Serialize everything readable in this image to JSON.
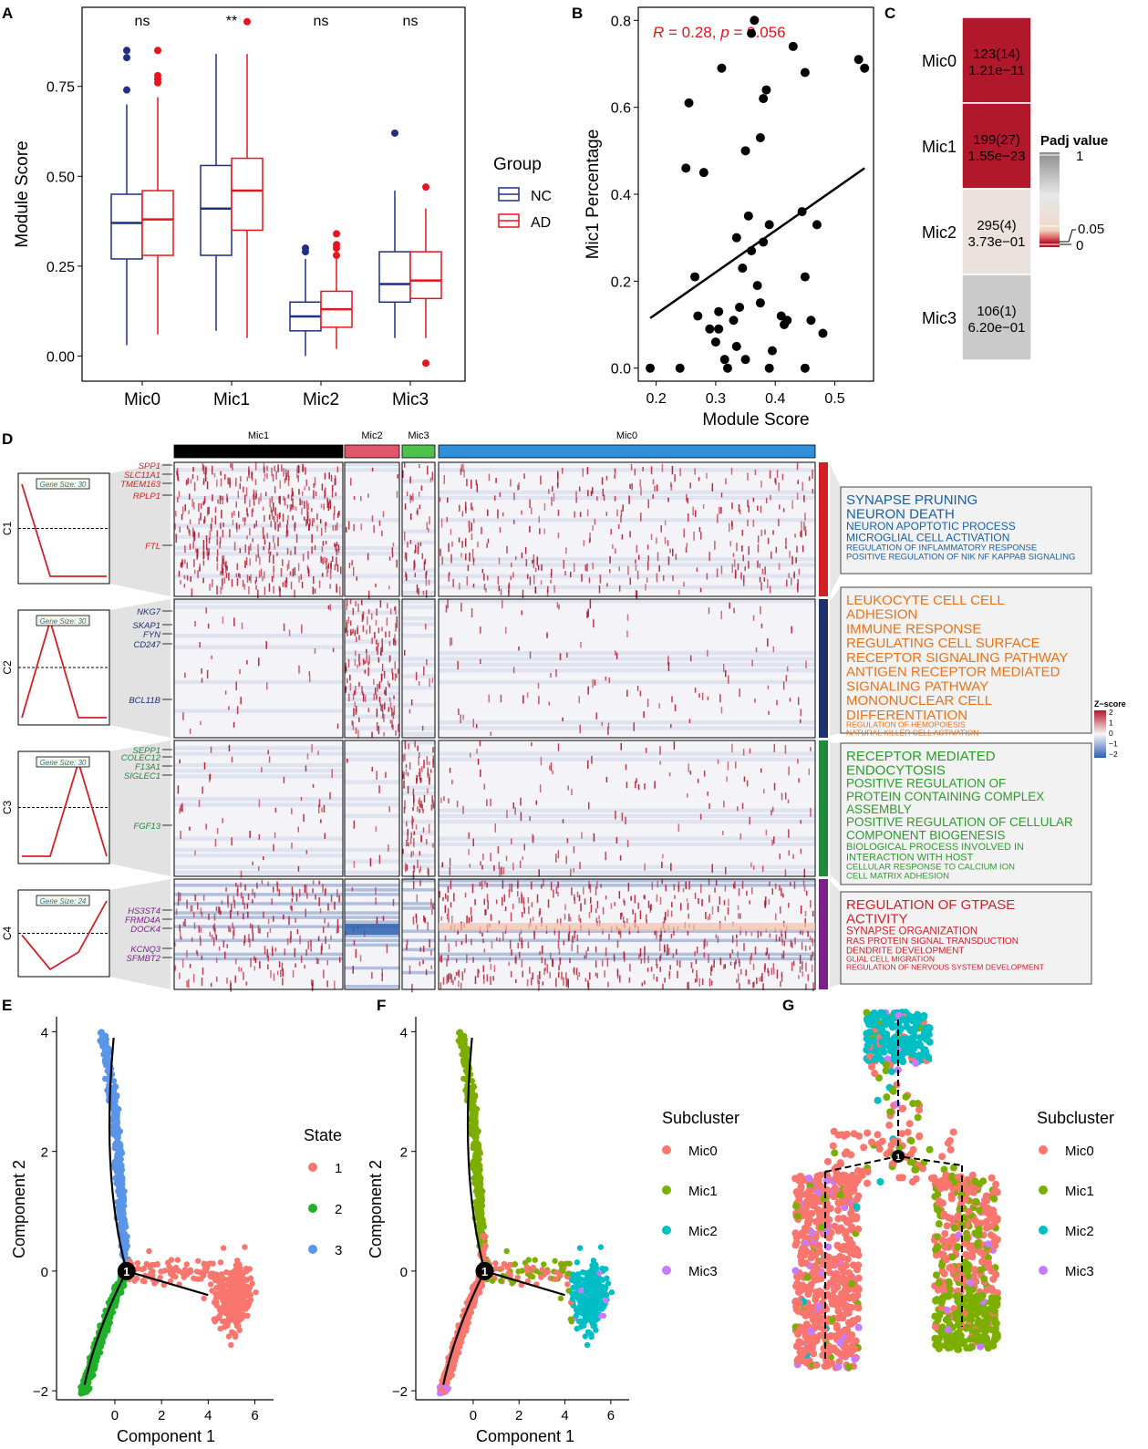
{
  "figure_title": "Microglia subcluster analysis",
  "colors": {
    "nc": "#1F2F86",
    "ad": "#E8141C",
    "mic0": "#F8766D",
    "mic1": "#7CAE00",
    "mic2": "#00BFC4",
    "mic3": "#C77CFF",
    "state1": "#F8766D",
    "state2": "#22B02C",
    "state3": "#5B95E8",
    "c1": "#D32027",
    "c2": "#20316D",
    "c3": "#1F8A3C",
    "c4": "#7A2286",
    "go_c1": "#1660A8",
    "go_c2": "#E8731A",
    "go_c3": "#2E9A2E",
    "go_c4": "#D0222A",
    "heat_high": "#B2182B",
    "heat_low": "#2C5FB0",
    "bar_mic1": "#000000",
    "bar_mic2": "#E0566B",
    "bar_mic3": "#4CC24C",
    "bar_mic0": "#2E8FDD"
  },
  "chart_data": [
    {
      "panel": "A",
      "type": "box",
      "ylabel": "Module Score",
      "ylim": [
        -0.07,
        0.97
      ],
      "yticks": [
        "0.00",
        "0.25",
        "0.50",
        "0.75"
      ],
      "ytick_values": [
        0,
        0.25,
        0.5,
        0.75
      ],
      "categories": [
        "Mic0",
        "Mic1",
        "Mic2",
        "Mic3"
      ],
      "significance": [
        "ns",
        "**",
        "ns",
        "ns"
      ],
      "legend": {
        "title": "Group",
        "items": [
          "NC",
          "AD"
        ]
      },
      "series": [
        {
          "name": "NC",
          "boxes": [
            {
              "min": 0.03,
              "q1": 0.27,
              "median": 0.37,
              "q3": 0.45,
              "max": 0.7,
              "outliers": [
                0.74,
                0.83,
                0.85
              ]
            },
            {
              "min": 0.07,
              "q1": 0.28,
              "median": 0.41,
              "q3": 0.53,
              "max": 0.84,
              "outliers": []
            },
            {
              "min": 0.0,
              "q1": 0.07,
              "median": 0.11,
              "q3": 0.15,
              "max": 0.27,
              "outliers": [
                0.29,
                0.3
              ]
            },
            {
              "min": 0.05,
              "q1": 0.15,
              "median": 0.2,
              "q3": 0.29,
              "max": 0.46,
              "outliers": [
                0.62
              ]
            }
          ]
        },
        {
          "name": "AD",
          "boxes": [
            {
              "min": 0.06,
              "q1": 0.28,
              "median": 0.38,
              "q3": 0.46,
              "max": 0.72,
              "outliers": [
                0.76,
                0.77,
                0.78,
                0.85
              ]
            },
            {
              "min": 0.05,
              "q1": 0.35,
              "median": 0.46,
              "q3": 0.55,
              "max": 0.84,
              "outliers": [
                0.93
              ]
            },
            {
              "min": 0.02,
              "q1": 0.08,
              "median": 0.13,
              "q3": 0.18,
              "max": 0.27,
              "outliers": [
                0.28,
                0.3,
                0.31,
                0.34
              ]
            },
            {
              "min": 0.05,
              "q1": 0.16,
              "median": 0.21,
              "q3": 0.29,
              "max": 0.41,
              "outliers": [
                0.47,
                -0.02
              ]
            }
          ]
        }
      ]
    },
    {
      "panel": "B",
      "type": "scatter",
      "xlabel": "Module Score",
      "ylabel": "Mic1 Percentage",
      "xlim": [
        0.17,
        0.565
      ],
      "ylim": [
        -0.03,
        0.83
      ],
      "xticks": [
        "0.2",
        "0.3",
        "0.4",
        "0.5"
      ],
      "xtick_values": [
        0.2,
        0.3,
        0.4,
        0.5
      ],
      "yticks": [
        "0.0",
        "0.2",
        "0.4",
        "0.6",
        "0.8"
      ],
      "ytick_values": [
        0,
        0.2,
        0.4,
        0.6,
        0.8
      ],
      "annotation": "R = 0.28, p = 0.056",
      "annotation_r": "R",
      "annotation_mid": " = 0.28, ",
      "annotation_p": "p",
      "annotation_end": " = 0.056",
      "regression": {
        "x0": 0.19,
        "y0": 0.115,
        "x1": 0.55,
        "y1": 0.46
      },
      "points": [
        [
          0.19,
          0.0
        ],
        [
          0.24,
          0.0
        ],
        [
          0.25,
          0.46
        ],
        [
          0.255,
          0.61
        ],
        [
          0.265,
          0.21
        ],
        [
          0.27,
          0.12
        ],
        [
          0.28,
          0.45
        ],
        [
          0.29,
          0.09
        ],
        [
          0.3,
          0.06
        ],
        [
          0.305,
          0.09
        ],
        [
          0.305,
          0.13
        ],
        [
          0.31,
          0.69
        ],
        [
          0.315,
          0.02
        ],
        [
          0.32,
          0.0
        ],
        [
          0.33,
          0.11
        ],
        [
          0.335,
          0.3
        ],
        [
          0.335,
          0.05
        ],
        [
          0.34,
          0.14
        ],
        [
          0.345,
          0.23
        ],
        [
          0.35,
          0.5
        ],
        [
          0.35,
          0.02
        ],
        [
          0.355,
          0.35
        ],
        [
          0.36,
          0.27
        ],
        [
          0.36,
          0.77
        ],
        [
          0.365,
          0.8
        ],
        [
          0.37,
          0.19
        ],
        [
          0.375,
          0.15
        ],
        [
          0.375,
          0.53
        ],
        [
          0.38,
          0.62
        ],
        [
          0.385,
          0.64
        ],
        [
          0.38,
          0.29
        ],
        [
          0.39,
          0.33
        ],
        [
          0.39,
          0.0
        ],
        [
          0.395,
          0.04
        ],
        [
          0.41,
          0.12
        ],
        [
          0.415,
          0.1
        ],
        [
          0.42,
          0.11
        ],
        [
          0.43,
          0.74
        ],
        [
          0.445,
          0.36
        ],
        [
          0.45,
          0.21
        ],
        [
          0.45,
          0.0
        ],
        [
          0.45,
          0.68
        ],
        [
          0.46,
          0.11
        ],
        [
          0.47,
          0.33
        ],
        [
          0.48,
          0.08
        ],
        [
          0.54,
          0.71
        ],
        [
          0.55,
          0.69
        ]
      ]
    },
    {
      "panel": "C",
      "type": "heatmap",
      "rows": [
        {
          "label": "Mic0",
          "count": "123(14)",
          "padj": "1.21e−11",
          "fill": "#B2182B"
        },
        {
          "label": "Mic1",
          "count": "199(27)",
          "padj": "1.55e−23",
          "fill": "#B2182B"
        },
        {
          "label": "Mic2",
          "count": "295(4)",
          "padj": "3.73e−01",
          "fill": "#EAE0DC"
        },
        {
          "label": "Mic3",
          "count": "106(1)",
          "padj": "6.20e−01",
          "fill": "#CACACA"
        }
      ],
      "legend": {
        "title": "Padj value",
        "labels": [
          "1",
          "0.05",
          "0"
        ]
      }
    },
    {
      "panel": "D",
      "type": "heatmap",
      "column_groups": [
        {
          "name": "Mic1",
          "share": 0.268
        },
        {
          "name": "Mic2",
          "share": 0.093
        },
        {
          "name": "Mic3",
          "share": 0.056
        },
        {
          "name": "Mic0",
          "share": 0.583
        }
      ],
      "legend": {
        "title": "Z−score",
        "labels": [
          "2",
          "1",
          "0",
          "−1",
          "−2"
        ]
      },
      "clusters": [
        {
          "name": "C1",
          "gene_size": "Gene Size: 30",
          "trend": [
            1,
            0,
            0,
            0
          ],
          "genes": [
            "SPP1",
            "SLC11A1",
            "TMEM163",
            "RPLP1",
            "FTL"
          ],
          "go_terms": [
            {
              "text": "SYNAPSE PRUNING",
              "size": 15
            },
            {
              "text": "NEURON DEATH",
              "size": 15
            },
            {
              "text": "NEURON APOPTOTIC PROCESS",
              "size": 12
            },
            {
              "text": "MICROGLIAL CELL ACTIVATION",
              "size": 12
            },
            {
              "text": "REGULATION OF INFLAMMATORY RESPONSE",
              "size": 9.5
            },
            {
              "text": "POSITIVE REGULATION OF NIK NF KAPPAB SIGNALING",
              "size": 9.5
            }
          ]
        },
        {
          "name": "C2",
          "gene_size": "Gene Size: 30",
          "trend": [
            0,
            1,
            0,
            0
          ],
          "genes": [
            "NKG7",
            "SKAP1",
            "FYN",
            "CD247",
            "BCL11B"
          ],
          "go_terms": [
            {
              "text": "LEUKOCYTE CELL CELL",
              "size": 15
            },
            {
              "text": "ADHESION",
              "size": 15
            },
            {
              "text": "IMMUNE RESPONSE",
              "size": 15
            },
            {
              "text": "REGULATING CELL SURFACE",
              "size": 15
            },
            {
              "text": "RECEPTOR SIGNALING PATHWAY",
              "size": 15
            },
            {
              "text": "ANTIGEN RECEPTOR MEDIATED",
              "size": 15
            },
            {
              "text": "SIGNALING PATHWAY",
              "size": 15
            },
            {
              "text": "MONONUCLEAR CELL",
              "size": 15
            },
            {
              "text": "DIFFERENTIATION",
              "size": 15
            },
            {
              "text": "REGULATION OF HEMOPOIESIS",
              "size": 8.5
            },
            {
              "text": "NATURAL KILLER CELL ACTIVATION",
              "size": 8.5
            }
          ]
        },
        {
          "name": "C3",
          "gene_size": "Gene Size: 30",
          "trend": [
            0,
            0,
            1,
            0
          ],
          "genes": [
            "SEPP1",
            "COLEC12",
            "F13A1",
            "SIGLEC1",
            "FGF13"
          ],
          "go_terms": [
            {
              "text": "RECEPTOR MEDIATED",
              "size": 15
            },
            {
              "text": "ENDOCYTOSIS",
              "size": 15
            },
            {
              "text": "POSITIVE REGULATION OF",
              "size": 13.5
            },
            {
              "text": "PROTEIN CONTAINING COMPLEX",
              "size": 13.5
            },
            {
              "text": "ASSEMBLY",
              "size": 13.5
            },
            {
              "text": "POSITIVE REGULATION OF CELLULAR",
              "size": 13.5
            },
            {
              "text": " COMPONENT BIOGENESIS",
              "size": 13.5
            },
            {
              "text": "BIOLOGICAL PROCESS INVOLVED IN",
              "size": 11
            },
            {
              "text": "INTERACTION WITH HOST",
              "size": 11
            },
            {
              "text": "CELLULAR RESPONSE TO CALCIUM ION",
              "size": 9.5
            },
            {
              "text": "CELL MATRIX ADHESION",
              "size": 9.5
            }
          ]
        },
        {
          "name": "C4",
          "gene_size": "Gene Size: 24",
          "trend": [
            0.5,
            0,
            0.25,
            1
          ],
          "genes": [
            "HS3ST4",
            "FRMD4A",
            "DOCK4",
            "KCNQ3",
            "SFMBT2"
          ],
          "go_terms": [
            {
              "text": "REGULATION OF GTPASE",
              "size": 15
            },
            {
              "text": "ACTIVITY",
              "size": 15
            },
            {
              "text": "SYNAPSE ORGANIZATION",
              "size": 11.5
            },
            {
              "text": "RAS PROTEIN SIGNAL TRANSDUCTION",
              "size": 10
            },
            {
              "text": "DENDRITE DEVELOPMENT",
              "size": 10
            },
            {
              "text": "GLIAL CELL MIGRATION",
              "size": 8.5
            },
            {
              "text": "REGULATION OF NERVOUS SYSTEM DEVELOPMENT",
              "size": 8.5
            }
          ]
        }
      ]
    },
    {
      "panel": "E",
      "type": "scatter",
      "xlabel": "Component 1",
      "ylabel": "Component 2",
      "xlim": [
        -2.5,
        6.8
      ],
      "ylim": [
        -2.15,
        4.25
      ],
      "xticks": [
        "0",
        "2",
        "4",
        "6"
      ],
      "xtick_values": [
        0,
        2,
        4,
        6
      ],
      "yticks": [
        "−2",
        "0",
        "2",
        "4"
      ],
      "ytick_values": [
        -2,
        0,
        2,
        4
      ],
      "branch_point": {
        "label": "1",
        "x": 0.5,
        "y": 0.0
      },
      "legend": {
        "title": "State",
        "items": [
          "1",
          "2",
          "3"
        ]
      }
    },
    {
      "panel": "F",
      "type": "scatter",
      "xlabel": "Component 1",
      "ylabel": "Component 2",
      "xlim": [
        -2.5,
        6.8
      ],
      "ylim": [
        -2.15,
        4.25
      ],
      "xticks": [
        "0",
        "2",
        "4",
        "6"
      ],
      "xtick_values": [
        0,
        2,
        4,
        6
      ],
      "yticks": [
        "−2",
        "0",
        "2",
        "4"
      ],
      "ytick_values": [
        -2,
        0,
        2,
        4
      ],
      "branch_point": {
        "label": "1",
        "x": 0.5,
        "y": 0.0
      },
      "legend": {
        "title": "Subcluster",
        "items": [
          "Mic0",
          "Mic1",
          "Mic2",
          "Mic3"
        ]
      }
    },
    {
      "panel": "G",
      "type": "scatter",
      "branch_point": {
        "label": "1"
      },
      "legend": {
        "title": "Subcluster",
        "items": [
          "Mic0",
          "Mic1",
          "Mic2",
          "Mic3"
        ]
      }
    }
  ],
  "panel_labels": [
    "A",
    "B",
    "C",
    "D",
    "E",
    "F",
    "G"
  ]
}
